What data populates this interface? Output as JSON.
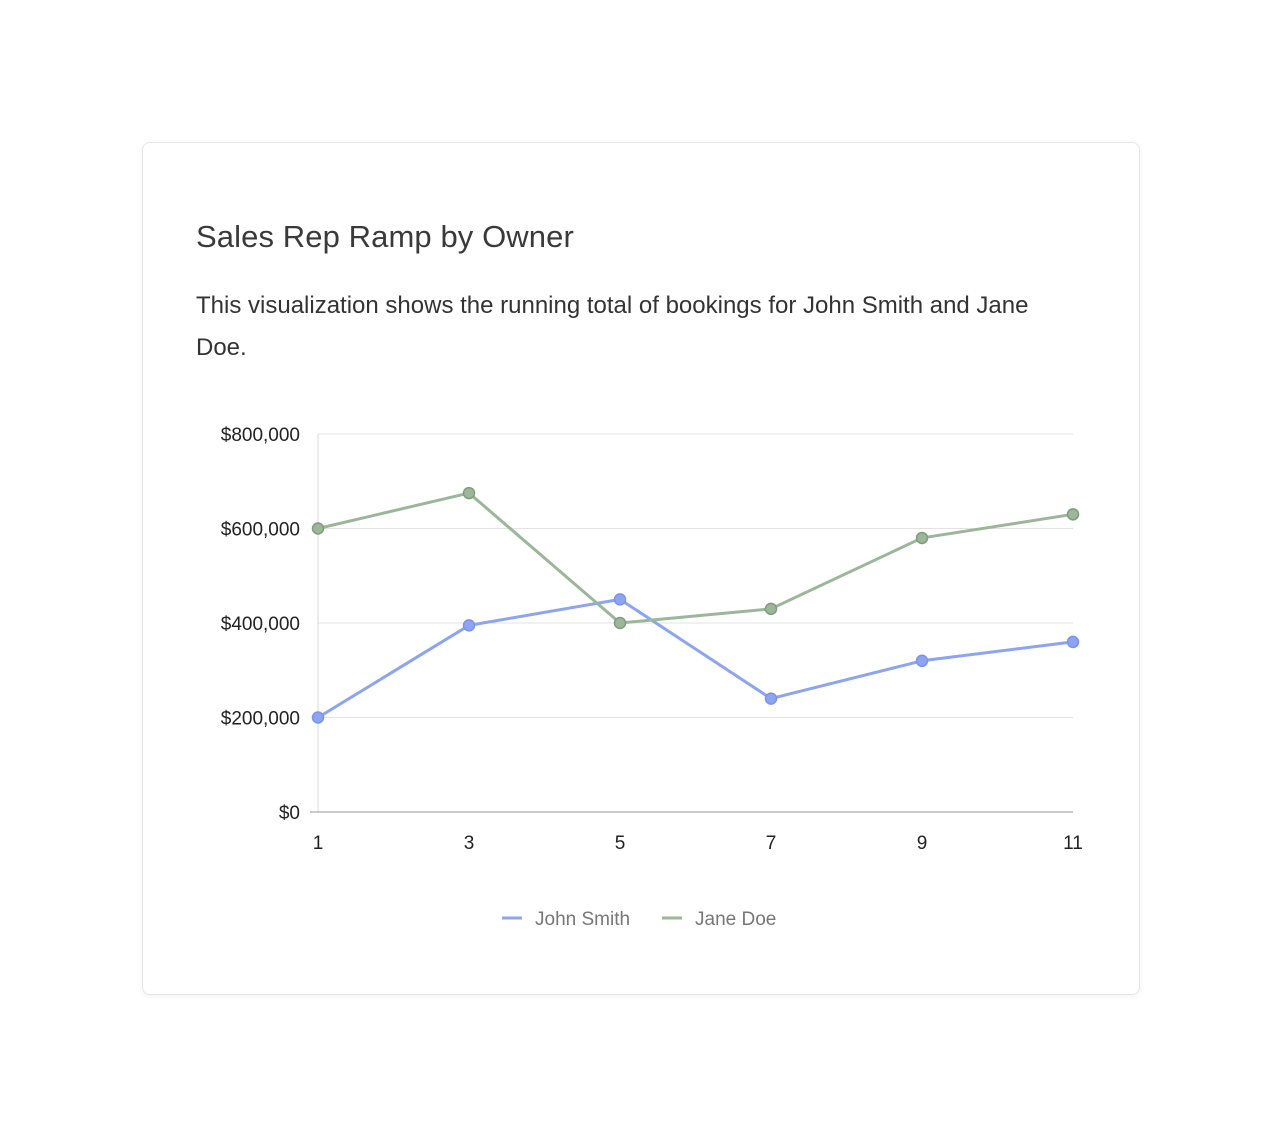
{
  "card": {
    "title": "Sales Rep Ramp by Owner",
    "description": "This visualization shows the running total of bookings for John Smith and Jane Doe."
  },
  "chart_data": {
    "type": "line",
    "x": [
      1,
      3,
      5,
      7,
      9,
      11
    ],
    "x_tick_labels": [
      "1",
      "3",
      "5",
      "7",
      "9",
      "11"
    ],
    "y_tick_labels": [
      "$0",
      "$200,000",
      "$400,000",
      "$600,000",
      "$800,000"
    ],
    "y_ticks": [
      0,
      200000,
      400000,
      600000,
      800000
    ],
    "ylim": [
      0,
      800000
    ],
    "xlim": [
      1,
      11
    ],
    "grid": true,
    "legend_position": "bottom-center",
    "series": [
      {
        "name": "John Smith",
        "color": "#8da4f0",
        "marker_color": "#7b93ee",
        "values": [
          200000,
          395000,
          450000,
          240000,
          320000,
          360000
        ]
      },
      {
        "name": "Jane Doe",
        "color": "#9cb69a",
        "marker_color": "#7f9d7c",
        "values": [
          600000,
          675000,
          400000,
          430000,
          580000,
          630000
        ]
      }
    ]
  }
}
